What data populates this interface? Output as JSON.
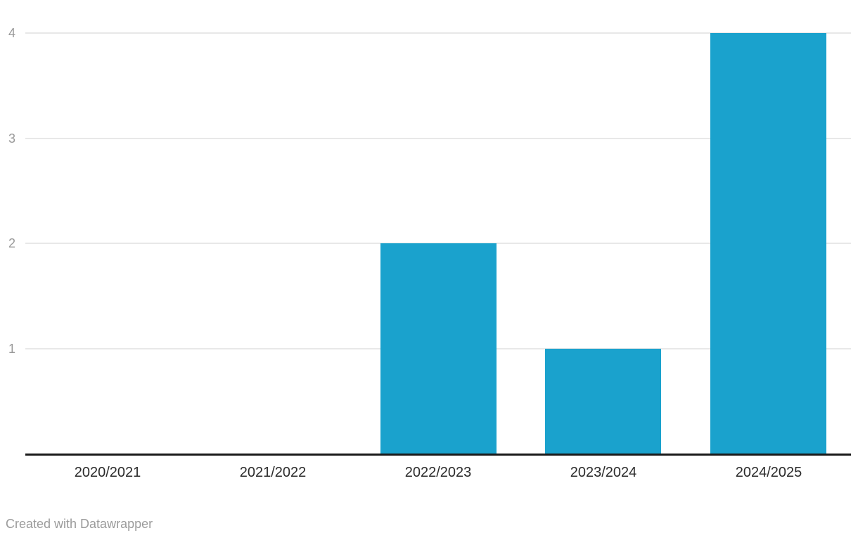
{
  "chart_data": {
    "type": "bar",
    "categories": [
      "2020/2021",
      "2021/2022",
      "2022/2023",
      "2023/2024",
      "2024/2025"
    ],
    "values": [
      0,
      0,
      2,
      1,
      4
    ],
    "title": "",
    "xlabel": "",
    "ylabel": "",
    "ylim": [
      0,
      4
    ],
    "yticks": [
      1,
      2,
      3,
      4
    ],
    "grid": true,
    "legend_position": "none",
    "colors": {
      "bar": "#1aa2cd",
      "gridline": "#e8e8e8",
      "axis_line": "#1a1a1a",
      "y_tick_label": "#999999",
      "x_tick_label": "#2b2b2b",
      "footer_text": "#9b9b9b"
    }
  },
  "footer": {
    "attribution": "Created with Datawrapper"
  }
}
